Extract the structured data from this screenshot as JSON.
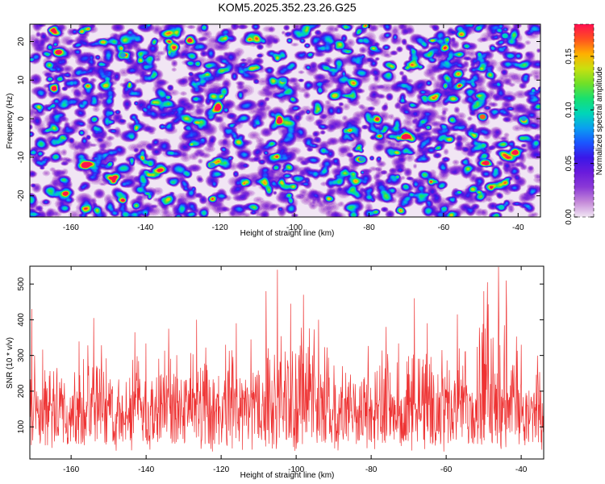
{
  "figure": {
    "title": "KOM5.2025.352.23.26.G25"
  },
  "chart_data": [
    {
      "type": "heatmap",
      "title": "KOM5.2025.352.23.26.G25",
      "xlabel": "Height of straight line (km)",
      "ylabel": "Frequency (Hz)",
      "xlim": [
        -171,
        -34
      ],
      "ylim": [
        -25.5,
        24.5
      ],
      "xticks": [
        -160,
        -140,
        -120,
        -100,
        -80,
        -60,
        -40
      ],
      "xtick_labels": [
        "-160",
        "-140",
        "-120",
        "-100",
        "-80",
        "-60",
        "-40"
      ],
      "yticks": [
        -20,
        -10,
        0,
        10,
        20
      ],
      "ytick_labels": [
        "-20",
        "-10",
        "0",
        "10",
        "20"
      ],
      "hot_spots": [
        {
          "x": -49.5,
          "y": 0.5,
          "value": 0.16
        },
        {
          "x": -48.5,
          "y": -11.5,
          "value": 0.18
        },
        {
          "x": -43.5,
          "y": 21.5,
          "value": 0.09
        },
        {
          "x": -38.5,
          "y": 0.0,
          "value": 0.08
        },
        {
          "x": -44.5,
          "y": -23.0,
          "value": 0.1
        },
        {
          "x": -146,
          "y": 16.5,
          "value": 0.08
        },
        {
          "x": -103,
          "y": 10.0,
          "value": 0.08
        },
        {
          "x": -122,
          "y": -12.0,
          "value": 0.08
        },
        {
          "x": -82,
          "y": -10.5,
          "value": 0.08
        }
      ],
      "colorbar": {
        "label": "Normalized spectral amplitude",
        "range": [
          0,
          0.18
        ],
        "ticks": [
          0.0,
          0.05,
          0.1,
          0.15
        ],
        "tick_labels": [
          "0.00",
          "0.05",
          "0.10",
          "0.15"
        ],
        "colors": [
          "#f2e6f4",
          "#c58ad9",
          "#8b3ad6",
          "#6a1bdc",
          "#3a17e8",
          "#1a56ff",
          "#0aa0f0",
          "#00d6b8",
          "#18e070",
          "#70e028",
          "#c8e010",
          "#ffb000",
          "#ff5020",
          "#ff1050"
        ]
      }
    },
    {
      "type": "line",
      "xlabel": "Height of straight line (km)",
      "ylabel": "SNR (10 * v/v)",
      "xlim": [
        -171,
        -34
      ],
      "ylim": [
        10,
        550
      ],
      "xticks": [
        -160,
        -140,
        -120,
        -100,
        -80,
        -60,
        -40
      ],
      "xtick_labels": [
        "-160",
        "-140",
        "-120",
        "-100",
        "-80",
        "-60",
        "-40"
      ],
      "yticks": [
        100,
        200,
        300,
        400,
        500
      ],
      "ytick_labels": [
        "100",
        "200",
        "300",
        "400",
        "500"
      ],
      "color": "#ee3333",
      "baseline": 130,
      "noise_band": [
        30,
        260
      ],
      "peaks": [
        {
          "x": -170.5,
          "y": 430
        },
        {
          "x": -154,
          "y": 405
        },
        {
          "x": -143,
          "y": 365
        },
        {
          "x": -134,
          "y": 375
        },
        {
          "x": -126.5,
          "y": 400
        },
        {
          "x": -116,
          "y": 390
        },
        {
          "x": -112,
          "y": 345
        },
        {
          "x": -108,
          "y": 480
        },
        {
          "x": -105,
          "y": 540
        },
        {
          "x": -101.5,
          "y": 445
        },
        {
          "x": -98,
          "y": 470
        },
        {
          "x": -94,
          "y": 400
        },
        {
          "x": -76,
          "y": 380
        },
        {
          "x": -68.5,
          "y": 460
        },
        {
          "x": -65,
          "y": 390
        },
        {
          "x": -57,
          "y": 415
        },
        {
          "x": -50,
          "y": 480
        },
        {
          "x": -49,
          "y": 505
        },
        {
          "x": -46,
          "y": 548
        },
        {
          "x": -44,
          "y": 510
        },
        {
          "x": -40,
          "y": 330
        }
      ]
    }
  ]
}
